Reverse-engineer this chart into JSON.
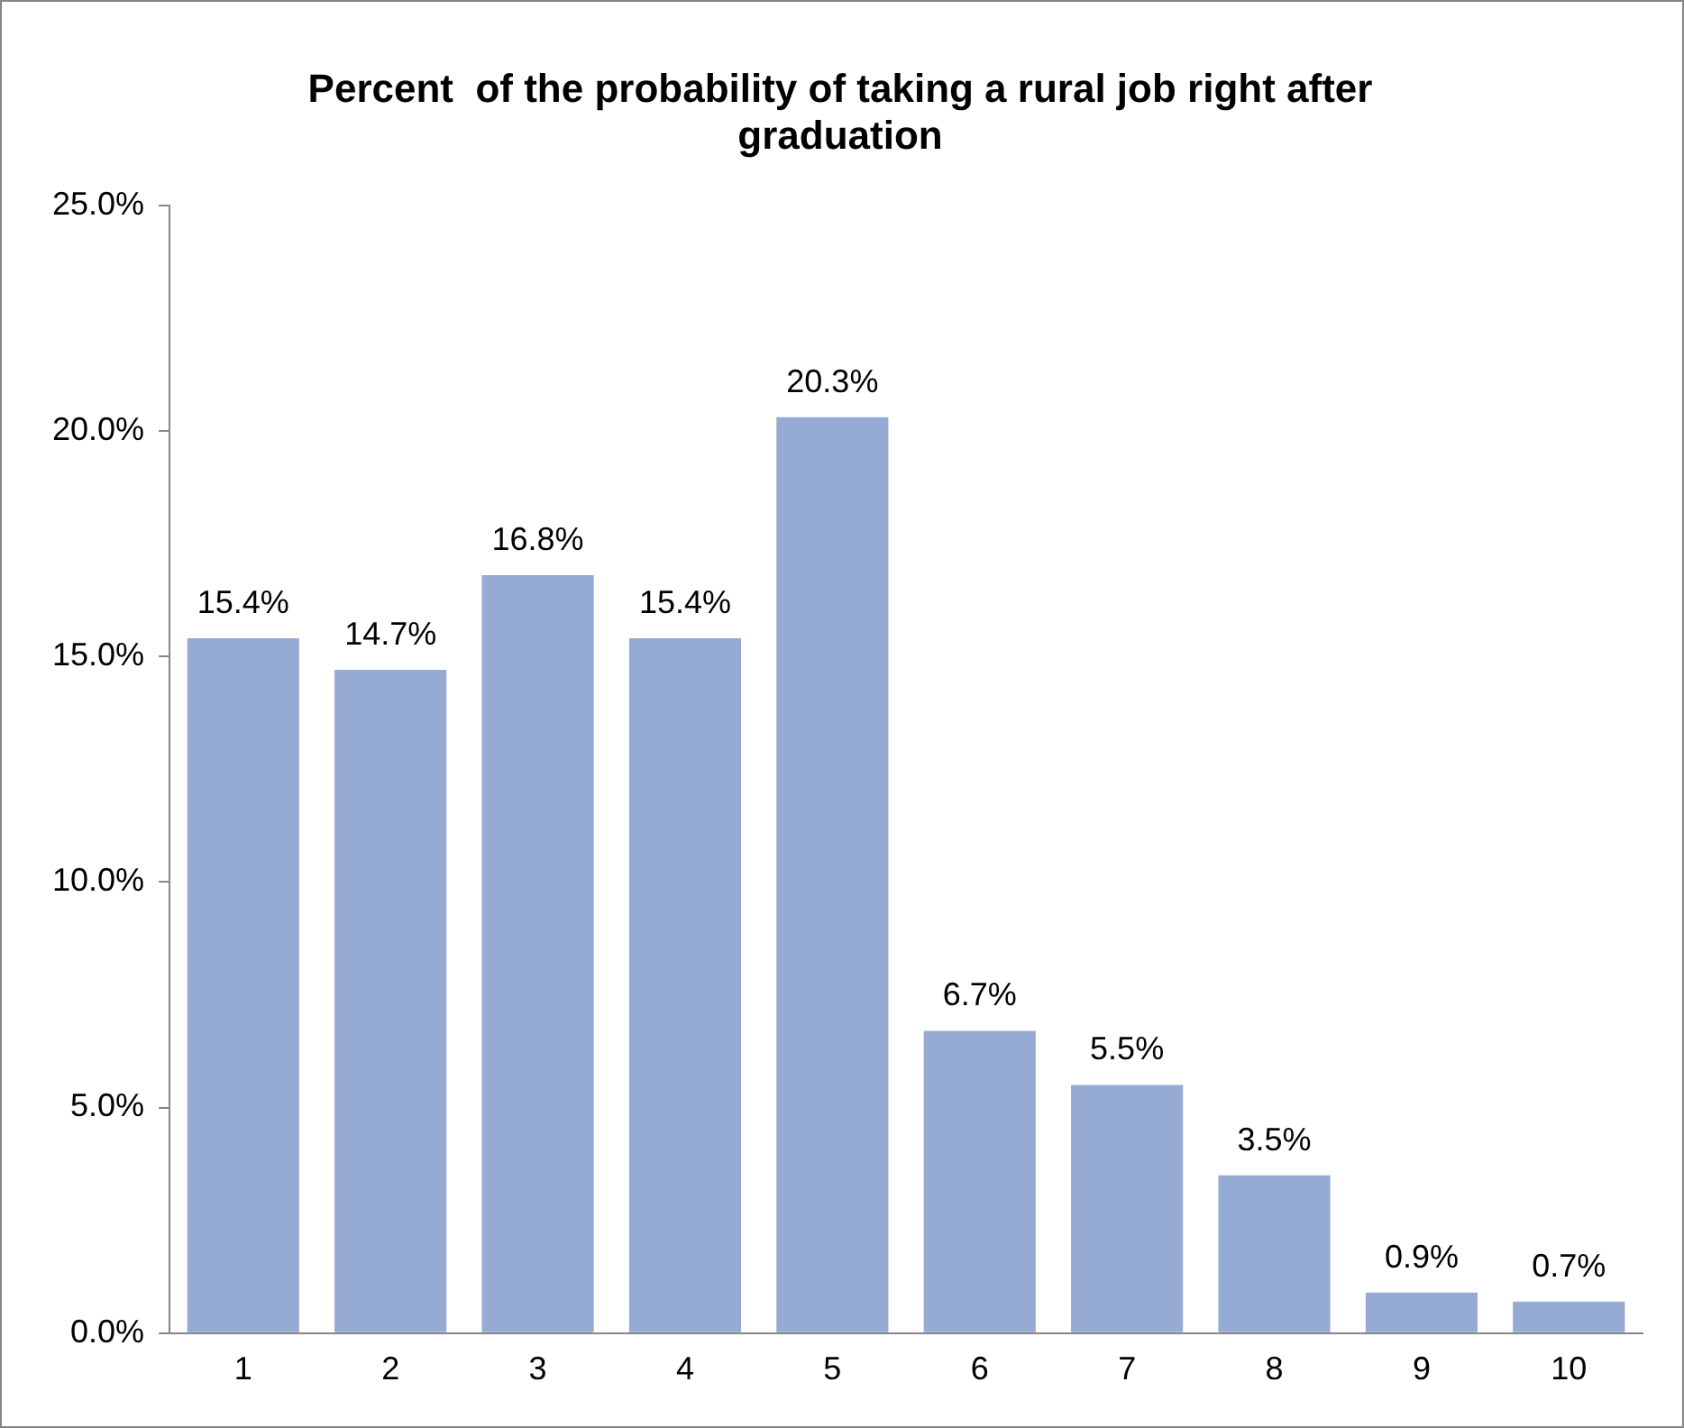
{
  "chart_data": {
    "type": "bar",
    "title": "Percent  of the probability of taking a rural job right after graduation",
    "categories": [
      "1",
      "2",
      "3",
      "4",
      "5",
      "6",
      "7",
      "8",
      "9",
      "10"
    ],
    "values": [
      15.4,
      14.7,
      16.8,
      15.4,
      20.3,
      6.7,
      5.5,
      3.5,
      0.9,
      0.7
    ],
    "value_labels": [
      "15.4%",
      "14.7%",
      "16.8%",
      "15.4%",
      "20.3%",
      "6.7%",
      "5.5%",
      "3.5%",
      "0.9%",
      "0.7%"
    ],
    "color": "#95abd3",
    "ylim": [
      0,
      25
    ],
    "yticks": [
      {
        "value": 0,
        "label": "0.0%"
      },
      {
        "value": 5,
        "label": "5.0%"
      },
      {
        "value": 10,
        "label": "10.0%"
      },
      {
        "value": 15,
        "label": "15.0%"
      },
      {
        "value": 20,
        "label": "20.0%"
      },
      {
        "value": 25,
        "label": "25.0%"
      }
    ],
    "grid": false,
    "legend": false
  }
}
